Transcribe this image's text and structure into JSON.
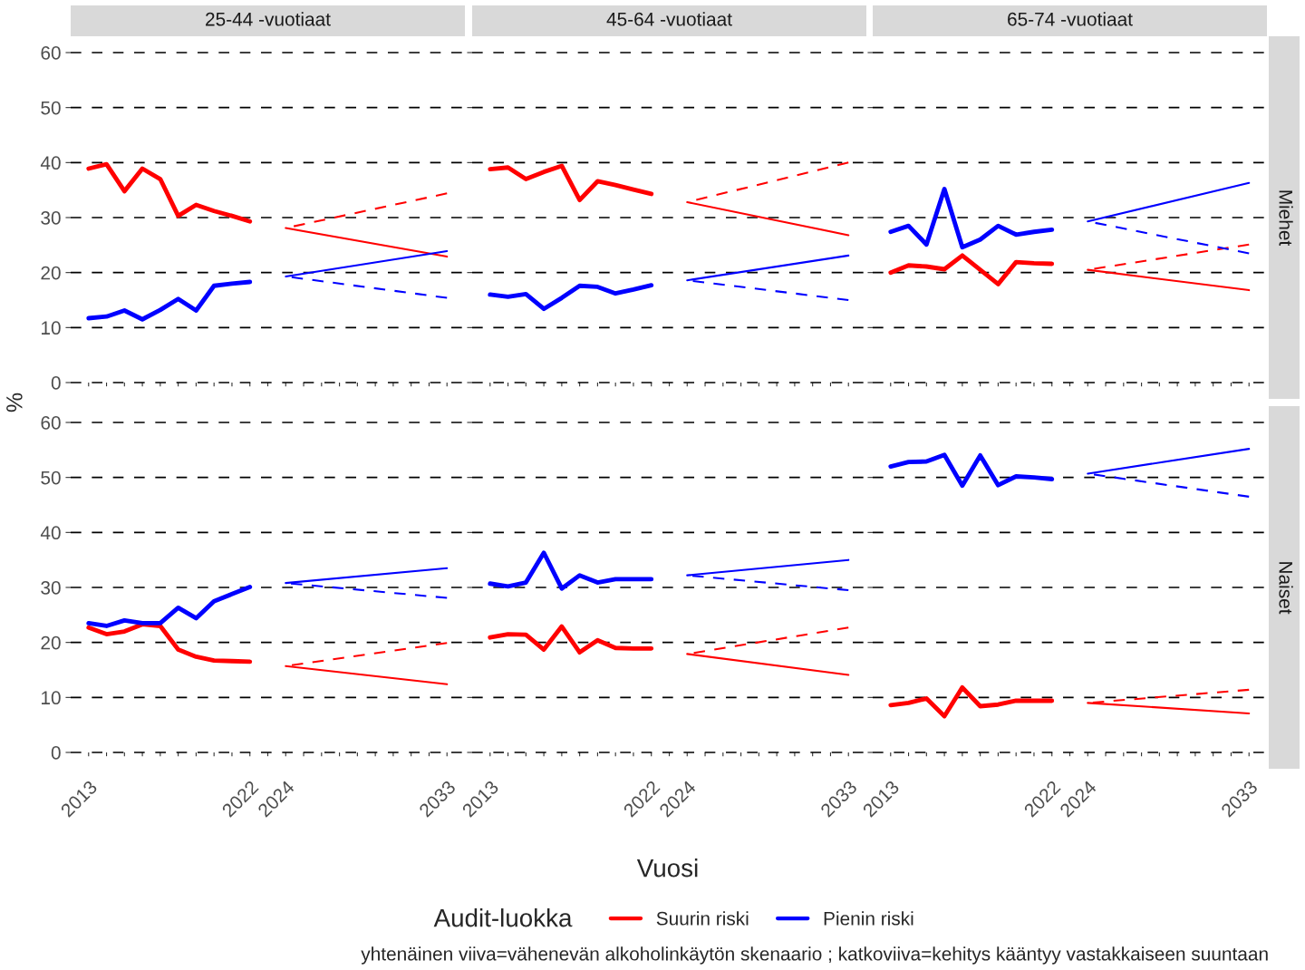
{
  "chart_data": [
    {
      "type": "line",
      "title": "25-44 -vuotiaat",
      "ylabel": "%",
      "legend": "bottom",
      "legend_title": "Audit-luokka",
      "x": [
        2013,
        2014,
        2015,
        2016,
        2017,
        2018,
        2019,
        2020,
        2021,
        2022,
        2024,
        2033
      ],
      "xlim": [
        2012,
        2034
      ],
      "xticks": [
        2013,
        {
          "value": 2014,
          "label": null
        },
        {
          "value": 2015,
          "label": null
        },
        {
          "value": 2016,
          "label": null
        },
        {
          "value": 2017,
          "label": null
        },
        {
          "value": 2018,
          "label": null
        },
        {
          "value": 2019,
          "label": null
        },
        {
          "value": 2020,
          "label": null
        },
        {
          "value": 2021,
          "label": null
        },
        2022,
        {
          "value": 2023,
          "label": null
        },
        2024,
        {
          "value": 2025,
          "label": null
        },
        {
          "value": 2026,
          "label": null
        },
        {
          "value": 2027,
          "label": null
        },
        {
          "value": 2028,
          "label": null
        },
        {
          "value": 2029,
          "label": null
        },
        {
          "value": 2030,
          "label": null
        },
        {
          "value": 2031,
          "label": null
        },
        {
          "value": 2032,
          "label": null
        },
        2033
      ],
      "ylim": [
        0,
        60
      ],
      "yticks": [
        0,
        10,
        20,
        30,
        40,
        50,
        60
      ],
      "grid": "y",
      "tick_labels": "y",
      "series": [
        {
          "name": "Suurin riski",
          "color": "#ff0000",
          "values": [
            38.9,
            39.7,
            34.8,
            38.9,
            37.0,
            30.3,
            32.3,
            31.2,
            30.3,
            29.3,
            null,
            null
          ]
        },
        {
          "name": "Pienin riski",
          "color": "#0000ff",
          "values": [
            11.7,
            12.0,
            13.1,
            11.5,
            13.2,
            15.2,
            13.1,
            17.6,
            18.0,
            18.3,
            null,
            null
          ]
        },
        {
          "color": "#ff0000",
          "values": [
            null,
            null,
            null,
            null,
            null,
            null,
            null,
            null,
            null,
            null,
            28.1,
            22.9
          ],
          "line_style": "solid"
        },
        {
          "color": "#ff0000",
          "values": [
            null,
            null,
            null,
            null,
            null,
            null,
            null,
            null,
            null,
            null,
            28.1,
            34.4
          ],
          "line_style": "dashed"
        },
        {
          "color": "#0000ff",
          "values": [
            null,
            null,
            null,
            null,
            null,
            null,
            null,
            null,
            null,
            null,
            19.3,
            23.9
          ],
          "line_style": "solid"
        },
        {
          "color": "#0000ff",
          "values": [
            null,
            null,
            null,
            null,
            null,
            null,
            null,
            null,
            null,
            null,
            19.3,
            15.4
          ],
          "line_style": "dashed"
        }
      ]
    },
    {
      "type": "line",
      "title": "45-64 -vuotiaat",
      "x": [
        2013,
        2014,
        2015,
        2016,
        2017,
        2018,
        2019,
        2020,
        2021,
        2022,
        2024,
        2033
      ],
      "xlim": [
        2012,
        2034
      ],
      "xticks": [
        2013,
        {
          "value": 2014,
          "label": null
        },
        {
          "value": 2015,
          "label": null
        },
        {
          "value": 2016,
          "label": null
        },
        {
          "value": 2017,
          "label": null
        },
        {
          "value": 2018,
          "label": null
        },
        {
          "value": 2019,
          "label": null
        },
        {
          "value": 2020,
          "label": null
        },
        {
          "value": 2021,
          "label": null
        },
        2022,
        {
          "value": 2023,
          "label": null
        },
        2024,
        {
          "value": 2025,
          "label": null
        },
        {
          "value": 2026,
          "label": null
        },
        {
          "value": 2027,
          "label": null
        },
        {
          "value": 2028,
          "label": null
        },
        {
          "value": 2029,
          "label": null
        },
        {
          "value": 2030,
          "label": null
        },
        {
          "value": 2031,
          "label": null
        },
        {
          "value": 2032,
          "label": null
        },
        2033
      ],
      "ylim": [
        0,
        60
      ],
      "yticks": [
        0,
        10,
        20,
        30,
        40,
        50,
        60
      ],
      "grid": "y",
      "tick_labels": false,
      "series": [
        {
          "color": "#ff0000",
          "values": [
            38.8,
            39.1,
            37.0,
            38.3,
            39.4,
            33.2,
            36.6,
            35.9,
            35.1,
            34.3,
            null,
            null
          ]
        },
        {
          "color": "#0000ff",
          "values": [
            16.0,
            15.6,
            16.1,
            13.4,
            15.4,
            17.6,
            17.4,
            16.2,
            16.9,
            17.7,
            null,
            null
          ]
        },
        {
          "color": "#ff0000",
          "values": [
            null,
            null,
            null,
            null,
            null,
            null,
            null,
            null,
            null,
            null,
            32.8,
            26.8
          ],
          "line_style": "solid"
        },
        {
          "color": "#ff0000",
          "values": [
            null,
            null,
            null,
            null,
            null,
            null,
            null,
            null,
            null,
            null,
            32.8,
            40.0
          ],
          "line_style": "dashed"
        },
        {
          "color": "#0000ff",
          "values": [
            null,
            null,
            null,
            null,
            null,
            null,
            null,
            null,
            null,
            null,
            18.6,
            23.1
          ],
          "line_style": "solid"
        },
        {
          "color": "#0000ff",
          "values": [
            null,
            null,
            null,
            null,
            null,
            null,
            null,
            null,
            null,
            null,
            18.6,
            15.0
          ],
          "line_style": "dashed"
        }
      ]
    },
    {
      "type": "line",
      "title": "65-74 -vuotiaat",
      "y2label": "Miehet",
      "x": [
        2013,
        2014,
        2015,
        2016,
        2017,
        2018,
        2019,
        2020,
        2021,
        2022,
        2024,
        2033
      ],
      "xlim": [
        2012,
        2034
      ],
      "xticks": [
        2013,
        {
          "value": 2014,
          "label": null
        },
        {
          "value": 2015,
          "label": null
        },
        {
          "value": 2016,
          "label": null
        },
        {
          "value": 2017,
          "label": null
        },
        {
          "value": 2018,
          "label": null
        },
        {
          "value": 2019,
          "label": null
        },
        {
          "value": 2020,
          "label": null
        },
        {
          "value": 2021,
          "label": null
        },
        2022,
        {
          "value": 2023,
          "label": null
        },
        2024,
        {
          "value": 2025,
          "label": null
        },
        {
          "value": 2026,
          "label": null
        },
        {
          "value": 2027,
          "label": null
        },
        {
          "value": 2028,
          "label": null
        },
        {
          "value": 2029,
          "label": null
        },
        {
          "value": 2030,
          "label": null
        },
        {
          "value": 2031,
          "label": null
        },
        {
          "value": 2032,
          "label": null
        },
        2033
      ],
      "ylim": [
        0,
        60
      ],
      "yticks": [
        0,
        10,
        20,
        30,
        40,
        50,
        60
      ],
      "grid": "y",
      "tick_labels": false,
      "series": [
        {
          "color": "#ff0000",
          "values": [
            20.0,
            21.3,
            21.1,
            20.6,
            23.1,
            20.5,
            17.9,
            21.9,
            21.7,
            21.6,
            null,
            null
          ]
        },
        {
          "color": "#0000ff",
          "values": [
            27.4,
            28.5,
            25.1,
            35.2,
            24.6,
            26.0,
            28.5,
            26.9,
            27.4,
            27.8,
            null,
            null
          ]
        },
        {
          "color": "#ff0000",
          "values": [
            null,
            null,
            null,
            null,
            null,
            null,
            null,
            null,
            null,
            null,
            20.5,
            16.8
          ],
          "line_style": "solid"
        },
        {
          "color": "#ff0000",
          "values": [
            null,
            null,
            null,
            null,
            null,
            null,
            null,
            null,
            null,
            null,
            20.5,
            25.1
          ],
          "line_style": "dashed"
        },
        {
          "color": "#0000ff",
          "values": [
            null,
            null,
            null,
            null,
            null,
            null,
            null,
            null,
            null,
            null,
            29.3,
            36.3
          ],
          "line_style": "solid"
        },
        {
          "color": "#0000ff",
          "values": [
            null,
            null,
            null,
            null,
            null,
            null,
            null,
            null,
            null,
            null,
            29.3,
            23.5
          ],
          "line_style": "dashed"
        }
      ]
    },
    {
      "type": "line",
      "x": [
        2013,
        2014,
        2015,
        2016,
        2017,
        2018,
        2019,
        2020,
        2021,
        2022,
        2024,
        2033
      ],
      "xlim": [
        2012,
        2034
      ],
      "xticks": [
        2013,
        {
          "value": 2014,
          "label": null
        },
        {
          "value": 2015,
          "label": null
        },
        {
          "value": 2016,
          "label": null
        },
        {
          "value": 2017,
          "label": null
        },
        {
          "value": 2018,
          "label": null
        },
        {
          "value": 2019,
          "label": null
        },
        {
          "value": 2020,
          "label": null
        },
        {
          "value": 2021,
          "label": null
        },
        2022,
        {
          "value": 2023,
          "label": null
        },
        2024,
        {
          "value": 2025,
          "label": null
        },
        {
          "value": 2026,
          "label": null
        },
        {
          "value": 2027,
          "label": null
        },
        {
          "value": 2028,
          "label": null
        },
        {
          "value": 2029,
          "label": null
        },
        {
          "value": 2030,
          "label": null
        },
        {
          "value": 2031,
          "label": null
        },
        {
          "value": 2032,
          "label": null
        },
        2033
      ],
      "ylim": [
        0,
        60
      ],
      "yticks": [
        0,
        10,
        20,
        30,
        40,
        50,
        60
      ],
      "grid": "y",
      "series": [
        {
          "color": "#ff0000",
          "values": [
            22.7,
            21.5,
            22.0,
            23.3,
            23.0,
            18.7,
            17.4,
            16.7,
            16.6,
            16.5,
            null,
            null
          ]
        },
        {
          "color": "#0000ff",
          "values": [
            23.5,
            23.0,
            24.0,
            23.5,
            23.5,
            26.3,
            24.4,
            27.5,
            28.8,
            30.1,
            null,
            null
          ]
        },
        {
          "color": "#ff0000",
          "values": [
            null,
            null,
            null,
            null,
            null,
            null,
            null,
            null,
            null,
            null,
            15.7,
            12.4
          ],
          "line_style": "solid"
        },
        {
          "color": "#ff0000",
          "values": [
            null,
            null,
            null,
            null,
            null,
            null,
            null,
            null,
            null,
            null,
            15.7,
            19.9
          ],
          "line_style": "dashed"
        },
        {
          "color": "#0000ff",
          "values": [
            null,
            null,
            null,
            null,
            null,
            null,
            null,
            null,
            null,
            null,
            30.8,
            33.5
          ],
          "line_style": "solid"
        },
        {
          "color": "#0000ff",
          "values": [
            null,
            null,
            null,
            null,
            null,
            null,
            null,
            null,
            null,
            null,
            30.8,
            28.1
          ],
          "line_style": "dashed"
        }
      ]
    },
    {
      "type": "line",
      "xlabel": "Vuosi",
      "annotations": [
        "yhtenäinen viiva=vähenevän alkoholinkäytön skenaario ; katkoviiva=kehitys kääntyy vastakkaiseen suuntaan"
      ],
      "x": [
        2013,
        2014,
        2015,
        2016,
        2017,
        2018,
        2019,
        2020,
        2021,
        2022,
        2024,
        2033
      ],
      "xlim": [
        2012,
        2034
      ],
      "xticks": [
        2013,
        {
          "value": 2014,
          "label": null
        },
        {
          "value": 2015,
          "label": null
        },
        {
          "value": 2016,
          "label": null
        },
        {
          "value": 2017,
          "label": null
        },
        {
          "value": 2018,
          "label": null
        },
        {
          "value": 2019,
          "label": null
        },
        {
          "value": 2020,
          "label": null
        },
        {
          "value": 2021,
          "label": null
        },
        2022,
        {
          "value": 2023,
          "label": null
        },
        2024,
        {
          "value": 2025,
          "label": null
        },
        {
          "value": 2026,
          "label": null
        },
        {
          "value": 2027,
          "label": null
        },
        {
          "value": 2028,
          "label": null
        },
        {
          "value": 2029,
          "label": null
        },
        {
          "value": 2030,
          "label": null
        },
        {
          "value": 2031,
          "label": null
        },
        {
          "value": 2032,
          "label": null
        },
        2033
      ],
      "ylim": [
        0,
        60
      ],
      "yticks": [
        0,
        10,
        20,
        30,
        40,
        50,
        60
      ],
      "grid": "y",
      "tick_labels": "x",
      "series": [
        {
          "color": "#ff0000",
          "values": [
            20.9,
            21.5,
            21.4,
            18.7,
            22.9,
            18.2,
            20.4,
            19.0,
            18.9,
            18.9,
            null,
            null
          ]
        },
        {
          "color": "#0000ff",
          "values": [
            30.7,
            30.2,
            30.9,
            36.3,
            29.8,
            32.2,
            30.9,
            31.5,
            31.5,
            31.5,
            null,
            null
          ]
        },
        {
          "color": "#ff0000",
          "values": [
            null,
            null,
            null,
            null,
            null,
            null,
            null,
            null,
            null,
            null,
            17.9,
            14.1
          ],
          "line_style": "solid"
        },
        {
          "color": "#ff0000",
          "values": [
            null,
            null,
            null,
            null,
            null,
            null,
            null,
            null,
            null,
            null,
            17.9,
            22.7
          ],
          "line_style": "dashed"
        },
        {
          "color": "#0000ff",
          "values": [
            null,
            null,
            null,
            null,
            null,
            null,
            null,
            null,
            null,
            null,
            32.2,
            35.0
          ],
          "line_style": "solid"
        },
        {
          "color": "#0000ff",
          "values": [
            null,
            null,
            null,
            null,
            null,
            null,
            null,
            null,
            null,
            null,
            32.2,
            29.5
          ],
          "line_style": "dashed"
        }
      ]
    },
    {
      "type": "line",
      "y2label": "Naiset",
      "x": [
        2013,
        2014,
        2015,
        2016,
        2017,
        2018,
        2019,
        2020,
        2021,
        2022,
        2024,
        2033
      ],
      "xlim": [
        2012,
        2034
      ],
      "xticks": [
        2013,
        {
          "value": 2014,
          "label": null
        },
        {
          "value": 2015,
          "label": null
        },
        {
          "value": 2016,
          "label": null
        },
        {
          "value": 2017,
          "label": null
        },
        {
          "value": 2018,
          "label": null
        },
        {
          "value": 2019,
          "label": null
        },
        {
          "value": 2020,
          "label": null
        },
        {
          "value": 2021,
          "label": null
        },
        2022,
        {
          "value": 2023,
          "label": null
        },
        2024,
        {
          "value": 2025,
          "label": null
        },
        {
          "value": 2026,
          "label": null
        },
        {
          "value": 2027,
          "label": null
        },
        {
          "value": 2028,
          "label": null
        },
        {
          "value": 2029,
          "label": null
        },
        {
          "value": 2030,
          "label": null
        },
        {
          "value": 2031,
          "label": null
        },
        {
          "value": 2032,
          "label": null
        },
        2033
      ],
      "ylim": [
        0,
        60
      ],
      "yticks": [
        0,
        10,
        20,
        30,
        40,
        50,
        60
      ],
      "grid": "y",
      "tick_labels": "x",
      "series": [
        {
          "color": "#ff0000",
          "values": [
            8.6,
            9.0,
            9.8,
            6.6,
            11.8,
            8.4,
            8.7,
            9.4,
            9.4,
            9.4,
            null,
            null
          ]
        },
        {
          "color": "#0000ff",
          "values": [
            52.0,
            52.8,
            52.9,
            54.1,
            48.5,
            54.0,
            48.6,
            50.2,
            50.0,
            49.7,
            null,
            null
          ]
        },
        {
          "color": "#ff0000",
          "values": [
            null,
            null,
            null,
            null,
            null,
            null,
            null,
            null,
            null,
            null,
            9.0,
            7.1
          ],
          "line_style": "solid"
        },
        {
          "color": "#ff0000",
          "values": [
            null,
            null,
            null,
            null,
            null,
            null,
            null,
            null,
            null,
            null,
            9.0,
            11.4
          ],
          "line_style": "dashed"
        },
        {
          "color": "#0000ff",
          "values": [
            null,
            null,
            null,
            null,
            null,
            null,
            null,
            null,
            null,
            null,
            50.7,
            55.2
          ],
          "line_style": "solid"
        },
        {
          "color": "#0000ff",
          "values": [
            null,
            null,
            null,
            null,
            null,
            null,
            null,
            null,
            null,
            null,
            50.7,
            46.5
          ],
          "line_style": "dashed"
        }
      ]
    }
  ]
}
